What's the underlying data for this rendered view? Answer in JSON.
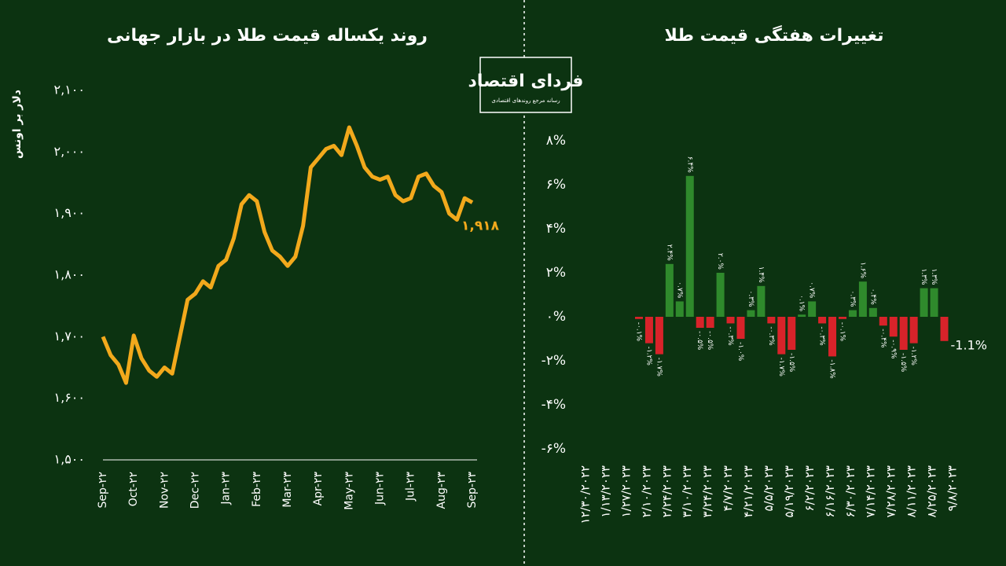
{
  "logo": {
    "title": "فردای اقتصاد",
    "subtitle": "رسانه مرجع روندهای اقتصادی"
  },
  "chart_data": [
    {
      "type": "line",
      "title": "روند یکساله قیمت طلا در بازار جهانی",
      "y_label": "دلار بر اونس",
      "color": "#f2a91c",
      "values": [
        1700,
        1670,
        1655,
        1625,
        1702,
        1665,
        1645,
        1635,
        1650,
        1640,
        1700,
        1760,
        1770,
        1790,
        1780,
        1815,
        1825,
        1860,
        1915,
        1930,
        1920,
        1870,
        1840,
        1830,
        1815,
        1830,
        1880,
        1975,
        1990,
        2005,
        2010,
        1995,
        2040,
        2010,
        1975,
        1960,
        1955,
        1960,
        1930,
        1920,
        1925,
        1960,
        1965,
        1945,
        1935,
        1900,
        1890,
        1925,
        1918
      ],
      "value_labels": [
        null,
        null,
        null,
        null,
        null,
        null,
        null,
        null,
        null,
        null,
        null,
        null,
        null,
        null,
        null,
        null,
        null,
        null,
        null,
        null,
        null,
        null,
        null,
        null,
        null,
        null,
        null,
        null,
        null,
        null,
        null,
        null,
        null,
        null,
        null,
        null,
        null,
        null,
        null,
        null,
        null,
        null,
        null,
        null,
        null,
        null,
        null,
        null,
        "۱,۹۱۸"
      ],
      "xlim": [
        0,
        48
      ],
      "xticks": [
        {
          "value": 0,
          "label": "Sep-۲۲"
        },
        {
          "value": 4,
          "label": "Oct-۲۲"
        },
        {
          "value": 8,
          "label": "Nov-۲۲"
        },
        {
          "value": 12,
          "label": "Dec-۲۲"
        },
        {
          "value": 16,
          "label": "Jan-۲۳"
        },
        {
          "value": 20,
          "label": "Feb-۲۳"
        },
        {
          "value": 24,
          "label": "Mar-۲۳"
        },
        {
          "value": 28,
          "label": "Apr-۲۳"
        },
        {
          "value": 32,
          "label": "May-۲۳"
        },
        {
          "value": 36,
          "label": "Jun-۲۳"
        },
        {
          "value": 40,
          "label": "Jul-۲۳"
        },
        {
          "value": 44,
          "label": "Aug-۲۳"
        },
        {
          "value": 48,
          "label": "Sep-۲۳"
        }
      ],
      "ylim": [
        1500,
        2100
      ],
      "yticks": [
        {
          "value": 1500,
          "label": "۱,۵۰۰"
        },
        {
          "value": 1600,
          "label": "۱,۶۰۰"
        },
        {
          "value": 1700,
          "label": "۱,۷۰۰"
        },
        {
          "value": 1800,
          "label": "۱,۸۰۰"
        },
        {
          "value": 1900,
          "label": "۱,۹۰۰"
        },
        {
          "value": 2000,
          "label": "۲,۰۰۰"
        },
        {
          "value": 2100,
          "label": "۲,۱۰۰"
        }
      ]
    },
    {
      "type": "bar",
      "title": "تغییرات هفتگی قیمت طلا",
      "positive_color": "#2f8a2c",
      "negative_color": "#d8232a",
      "values": [
        -0.1,
        -1.2,
        -1.7,
        2.4,
        0.7,
        6.4,
        -0.5,
        -0.5,
        2.0,
        -0.3,
        -1.0,
        0.3,
        1.4,
        -0.3,
        -1.7,
        -1.5,
        0.1,
        0.7,
        -0.3,
        -1.8,
        -0.1,
        0.3,
        1.6,
        0.4,
        -0.4,
        -0.9,
        -1.5,
        -1.2,
        1.3,
        1.3,
        -1.1
      ],
      "value_labels": [
        "-۰.۱%",
        "-۱.۲%",
        "-۱.۷%",
        "۲.۴%",
        "۰.۷%",
        "۶.۴%",
        "-۰.۵%",
        "-۰.۵%",
        "۲.۰%",
        "-۰.۳%",
        "-۱.۰%",
        "۰.۳%",
        "۱.۴%",
        "-۰.۳%",
        "-۱.۷%",
        "-۱.۵%",
        "۰.۱%",
        "۰.۷%",
        "-۰.۳%",
        "-۱.۸%",
        "-۰.۱%",
        "۰.۳%",
        "۱.۶%",
        "۰.۴%",
        "-۰.۴%",
        "-۰.۹%",
        "-۱.۵%",
        "-۱.۲%",
        "۱.۳%",
        "۱.۳%",
        "-1.1%"
      ],
      "x_labels": [
        "۱۲/۳۰/۲۰۲۲",
        "۱/۱۳/۲۰۲۳",
        "۱/۲۷/۲۰۲۳",
        "۲/۱۰/۲۰۲۳",
        "۲/۲۴/۲۰۲۳",
        "۳/۱۰/۲۰۲۳",
        "۳/۲۴/۲۰۲۳",
        "۴/۷/۲۰۲۳",
        "۴/۲۱/۲۰۲۳",
        "۵/۵/۲۰۲۳",
        "۵/۱۹/۲۰۲۳",
        "۶/۲/۲۰۲۳",
        "۶/۱۶/۲۰۲۳",
        "۶/۳۰/۲۰۲۳",
        "۷/۱۴/۲۰۲۳",
        "۷/۲۸/۲۰۲۳",
        "۸/۱۱/۲۰۲۳",
        "۸/۲۵/۲۰۲۳",
        "۹/۸/۲۰۲۳"
      ],
      "ylim": [
        -6,
        8
      ],
      "yticks": [
        {
          "value": -6,
          "label": "-۶%"
        },
        {
          "value": -4,
          "label": "-۴%"
        },
        {
          "value": -2,
          "label": "-۲%"
        },
        {
          "value": 0,
          "label": "۰%"
        },
        {
          "value": 2,
          "label": "۲%"
        },
        {
          "value": 4,
          "label": "۴%"
        },
        {
          "value": 6,
          "label": "۶%"
        },
        {
          "value": 8,
          "label": "۸%"
        }
      ]
    }
  ]
}
